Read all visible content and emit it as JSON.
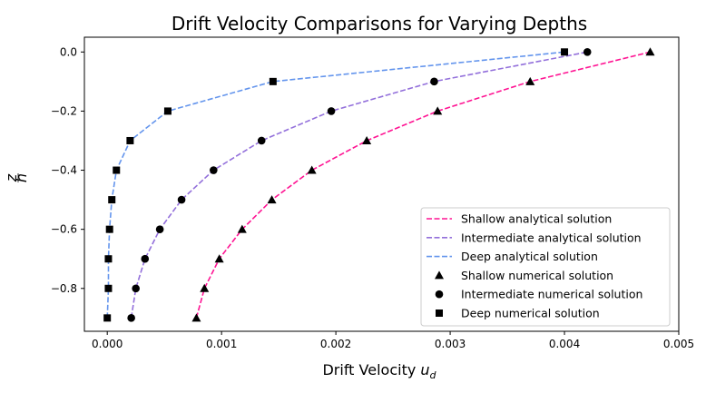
{
  "chart_data": {
    "type": "line",
    "title": "Drift Velocity Comparisons for Varying Depths",
    "xlabel": "Drift Velocity u_d",
    "xlabel_main": "Drift Velocity ",
    "xlabel_var": "u",
    "xlabel_sub": "d",
    "ylabel": "z/h",
    "ylabel_num": "z",
    "ylabel_den": "h",
    "xlim": [
      -0.0002,
      0.005
    ],
    "ylim": [
      -0.945,
      0.05
    ],
    "xticks": [
      0,
      0.001,
      0.002,
      0.003,
      0.004,
      0.005
    ],
    "xtick_labels": [
      "0.000",
      "0.001",
      "0.002",
      "0.003",
      "0.004",
      "0.005"
    ],
    "yticks": [
      0,
      -0.2,
      -0.4,
      -0.6,
      -0.8
    ],
    "ytick_labels": [
      "0.0",
      "−0.2",
      "−0.4",
      "−0.6",
      "−0.8"
    ],
    "legend_position": "lower-right",
    "series": [
      {
        "name": "Shallow analytical solution",
        "kind": "line",
        "style": "dashed",
        "color": "#ff1493",
        "x": [
          0.00078,
          0.00085,
          0.00098,
          0.00118,
          0.00144,
          0.00179,
          0.00227,
          0.00289,
          0.0037,
          0.00475
        ],
        "y": [
          -0.9,
          -0.8,
          -0.7,
          -0.6,
          -0.5,
          -0.4,
          -0.3,
          -0.2,
          -0.1,
          0.0
        ]
      },
      {
        "name": "Intermediate analytical solution",
        "kind": "line",
        "style": "dashed",
        "color": "#9370db",
        "x": [
          0.00021,
          0.00025,
          0.00033,
          0.00046,
          0.00065,
          0.00093,
          0.00135,
          0.00196,
          0.00286,
          0.0042
        ],
        "y": [
          -0.9,
          -0.8,
          -0.7,
          -0.6,
          -0.5,
          -0.4,
          -0.3,
          -0.2,
          -0.1,
          0.0
        ]
      },
      {
        "name": "Deep analytical solution",
        "kind": "line",
        "style": "dashed",
        "color": "#6495ed",
        "x": [
          0.0,
          1e-05,
          1e-05,
          2e-05,
          4e-05,
          8e-05,
          0.0002,
          0.00053,
          0.00145,
          0.004
        ],
        "y": [
          -0.9,
          -0.8,
          -0.7,
          -0.6,
          -0.5,
          -0.4,
          -0.3,
          -0.2,
          -0.1,
          0.0
        ]
      },
      {
        "name": "Shallow numerical solution",
        "kind": "scatter",
        "marker": "triangle",
        "color": "#000000",
        "x": [
          0.00078,
          0.00085,
          0.00098,
          0.00118,
          0.00144,
          0.00179,
          0.00227,
          0.00289,
          0.0037,
          0.00475
        ],
        "y": [
          -0.9,
          -0.8,
          -0.7,
          -0.6,
          -0.5,
          -0.4,
          -0.3,
          -0.2,
          -0.1,
          0.0
        ]
      },
      {
        "name": "Intermediate numerical solution",
        "kind": "scatter",
        "marker": "circle",
        "color": "#000000",
        "x": [
          0.00021,
          0.00025,
          0.00033,
          0.00046,
          0.00065,
          0.00093,
          0.00135,
          0.00196,
          0.00286,
          0.0042
        ],
        "y": [
          -0.9,
          -0.8,
          -0.7,
          -0.6,
          -0.5,
          -0.4,
          -0.3,
          -0.2,
          -0.1,
          0.0
        ]
      },
      {
        "name": "Deep numerical solution",
        "kind": "scatter",
        "marker": "square",
        "color": "#000000",
        "x": [
          0.0,
          1e-05,
          1e-05,
          2e-05,
          4e-05,
          8e-05,
          0.0002,
          0.00053,
          0.00145,
          0.004
        ],
        "y": [
          -0.9,
          -0.8,
          -0.7,
          -0.6,
          -0.5,
          -0.4,
          -0.3,
          -0.2,
          -0.1,
          0.0
        ]
      }
    ]
  }
}
